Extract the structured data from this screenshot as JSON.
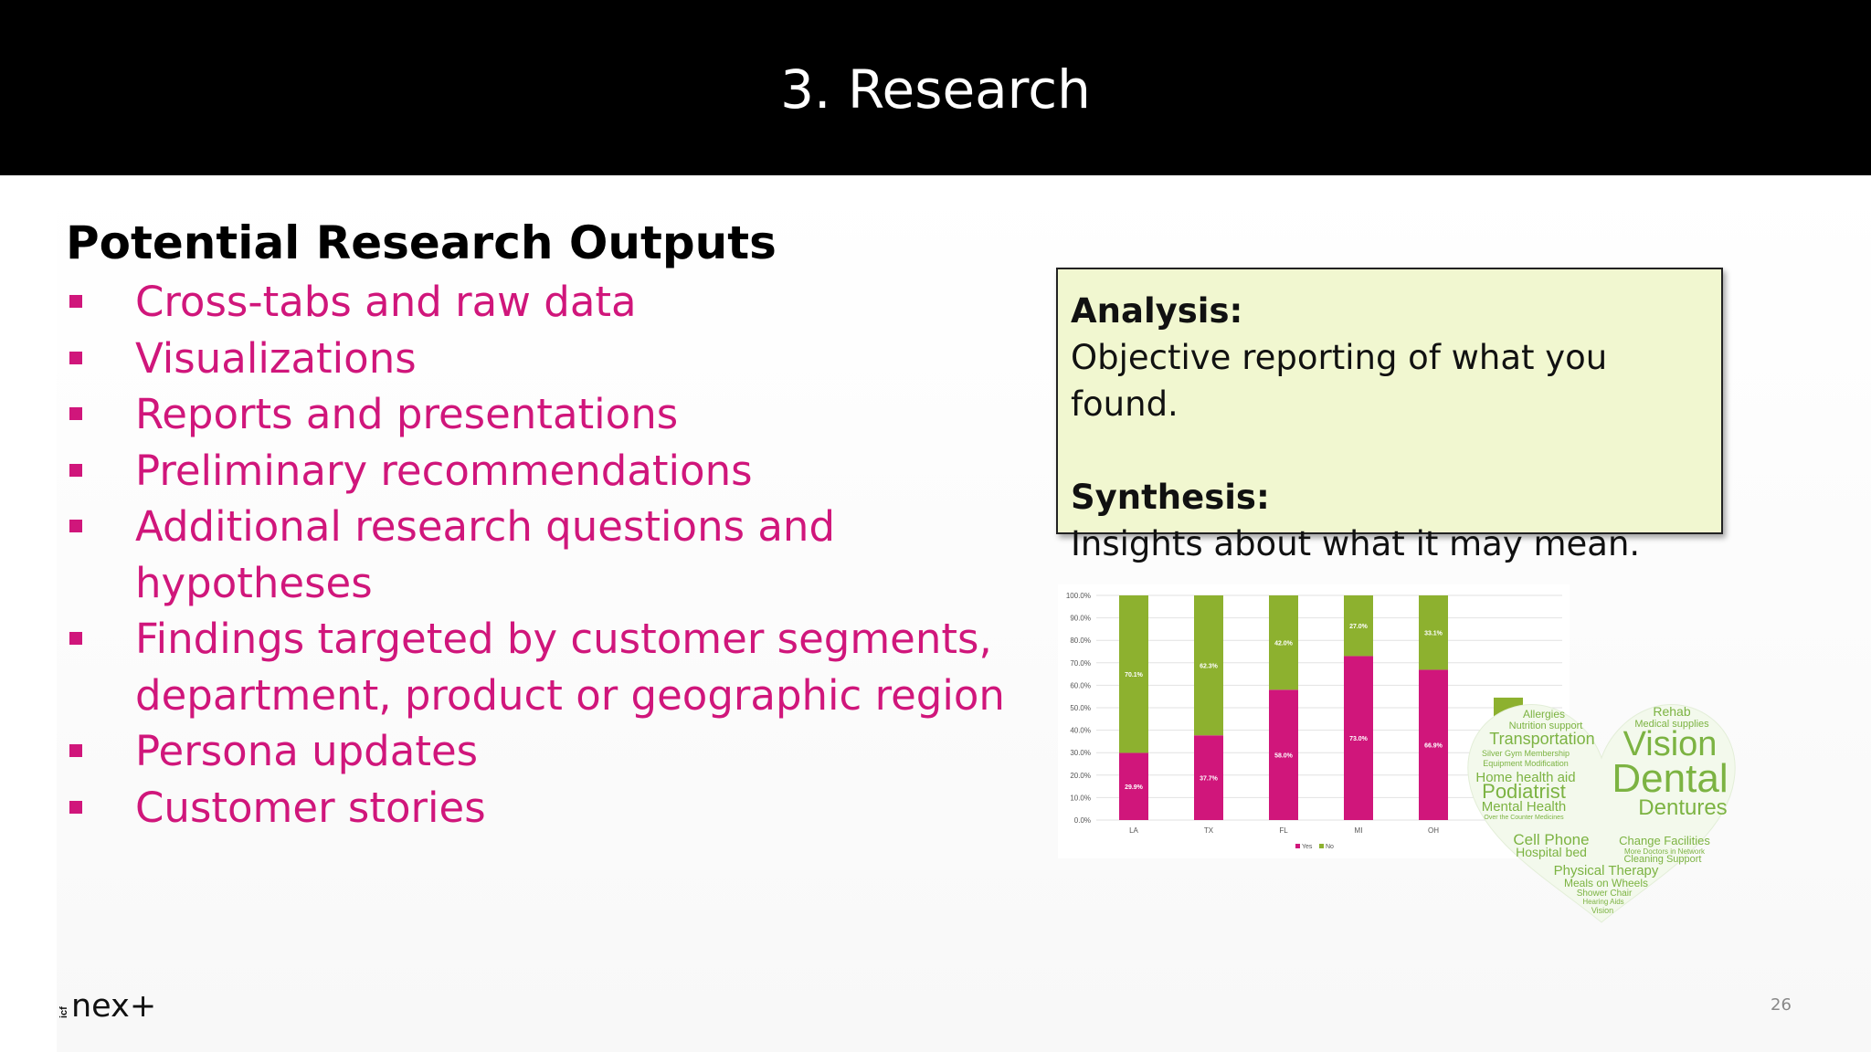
{
  "slide": {
    "title": "3. Research",
    "page_number": "26"
  },
  "main": {
    "heading": "Potential Research Outputs",
    "bullets": [
      "Cross-tabs and raw data",
      "Visualizations",
      "Reports and presentations",
      "Preliminary recommendations",
      "Additional research questions and hypotheses",
      "Findings targeted by customer segments, department, product or geographic region",
      "Persona updates",
      "Customer stories"
    ]
  },
  "info_box": {
    "analysis_label": "Analysis:",
    "analysis_text": "Objective reporting of what you found.",
    "synthesis_label": "Synthesis:",
    "synthesis_text": "Insights about what it may mean."
  },
  "logo": {
    "brand_text": "nex+",
    "small_text": "icf"
  },
  "colors": {
    "accent_magenta": "#d0167b",
    "chart_green": "#8db12f",
    "box_fill": "#f1f7d0",
    "wordcloud_green": "#7cb342"
  },
  "chart_data": {
    "type": "bar",
    "stacked": true,
    "categories": [
      "LA",
      "TX",
      "FL",
      "MI",
      "OH",
      ""
    ],
    "series": [
      {
        "name": "Yes",
        "color": "#d0167b",
        "values": [
          29.9,
          37.7,
          58.0,
          73.0,
          66.9,
          null
        ],
        "labels": [
          "29.9%",
          "37.7%",
          "58.0%",
          "73.0%",
          "66.9%",
          ""
        ]
      },
      {
        "name": "No",
        "color": "#8db12f",
        "values": [
          70.1,
          62.3,
          42.0,
          27.0,
          33.1,
          54.5
        ],
        "labels": [
          "70.1%",
          "62.3%",
          "42.0%",
          "27.0%",
          "33.1%",
          "54.5%"
        ]
      }
    ],
    "y_ticks": [
      "0.0%",
      "10.0%",
      "20.0%",
      "30.0%",
      "40.0%",
      "50.0%",
      "60.0%",
      "70.0%",
      "80.0%",
      "90.0%",
      "100.0%"
    ],
    "ylim": [
      0,
      100
    ],
    "grid": true,
    "legend_position": "bottom",
    "legend": [
      "Yes",
      "No"
    ]
  },
  "wordcloud": {
    "words": [
      {
        "text": "Rehab"
      },
      {
        "text": "Allergies"
      },
      {
        "text": "Medical supplies"
      },
      {
        "text": "Nutrition support"
      },
      {
        "text": "Transportation"
      },
      {
        "text": "Vision"
      },
      {
        "text": "Silver Gym Membership"
      },
      {
        "text": "Equipment Modification"
      },
      {
        "text": "Dental"
      },
      {
        "text": "Home health aid"
      },
      {
        "text": "Podiatrist"
      },
      {
        "text": "Mental Health"
      },
      {
        "text": "Dentures"
      },
      {
        "text": "Over the Counter Medicines"
      },
      {
        "text": "Cell Phone"
      },
      {
        "text": "Change Facilities"
      },
      {
        "text": "Hospital bed"
      },
      {
        "text": "More Doctors in Network"
      },
      {
        "text": "Cleaning Support"
      },
      {
        "text": "Physical Therapy"
      },
      {
        "text": "Meals on Wheels"
      },
      {
        "text": "Shower Chair"
      },
      {
        "text": "Hearing Aids"
      },
      {
        "text": "Vision"
      }
    ]
  }
}
